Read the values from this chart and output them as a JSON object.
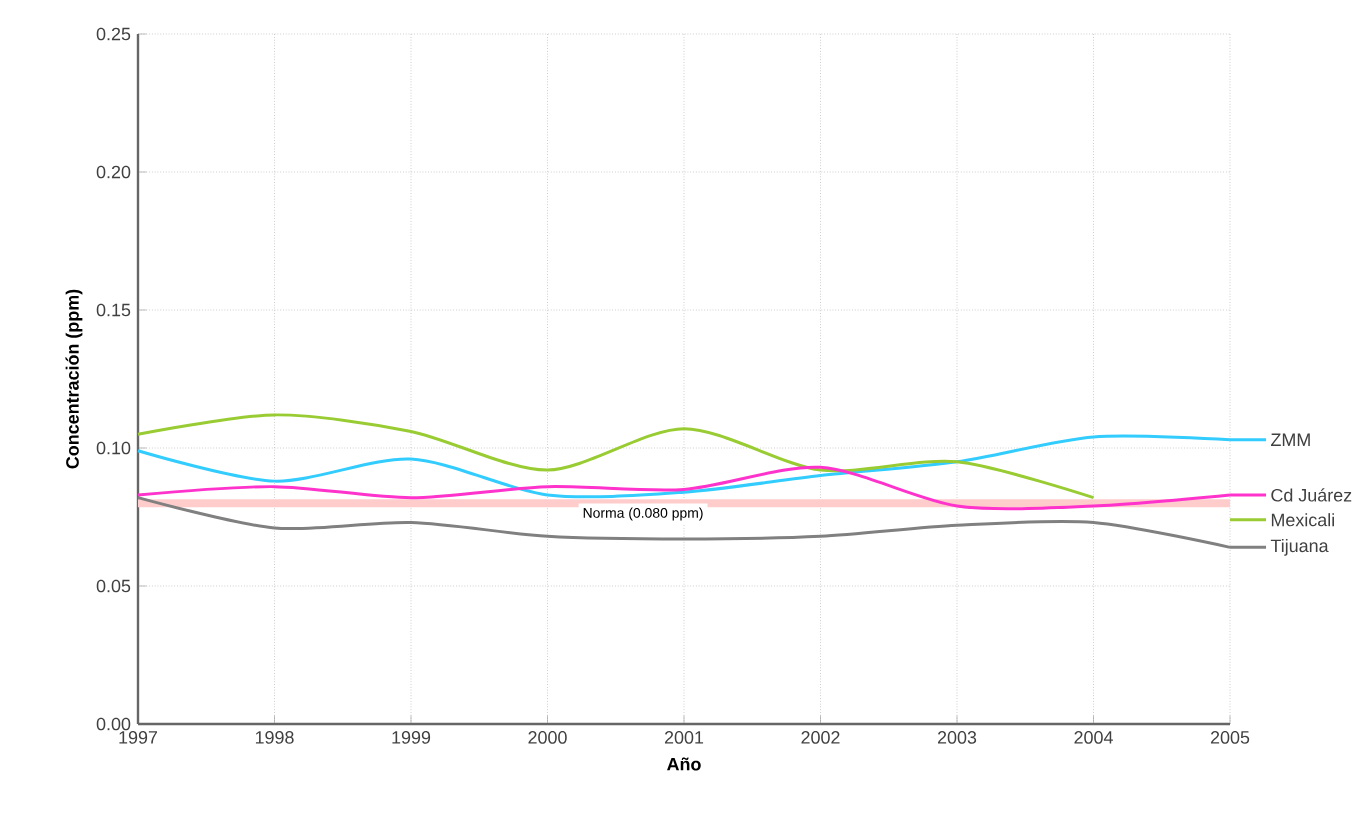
{
  "chart_data": {
    "type": "line",
    "xlabel": "Año",
    "ylabel": "Concentración (ppm)",
    "x": [
      1997,
      1998,
      1999,
      2000,
      2001,
      2002,
      2003,
      2004,
      2005
    ],
    "xlim": [
      1997,
      2005
    ],
    "xticks": [
      1997,
      1998,
      1999,
      2000,
      2001,
      2002,
      2003,
      2004,
      2005
    ],
    "ylim": [
      0,
      0.25
    ],
    "yticks": [
      {
        "value": 0,
        "label": "0.00"
      },
      {
        "value": 0.05,
        "label": "0.05"
      },
      {
        "value": 0.1,
        "label": "0.10"
      },
      {
        "value": 0.15,
        "label": "0.15"
      },
      {
        "value": 0.2,
        "label": "0.20"
      },
      {
        "value": 0.25,
        "label": "0.25"
      }
    ],
    "grid": true,
    "legend": "right",
    "marker": "none",
    "line_style": "solid",
    "series": [
      {
        "name": "ZMM",
        "color": "#33ccff",
        "values": [
          0.099,
          0.088,
          0.096,
          0.083,
          0.084,
          0.09,
          0.095,
          0.104,
          0.103
        ]
      },
      {
        "name": "Mexicali",
        "color": "#99cc33",
        "values": [
          0.105,
          0.112,
          0.106,
          0.092,
          0.107,
          0.092,
          0.095,
          0.082,
          null
        ]
      },
      {
        "name": "Cd Juárez",
        "color": "#ff33cc",
        "values": [
          0.083,
          0.086,
          0.082,
          0.086,
          0.085,
          0.093,
          0.079,
          0.079,
          0.083
        ]
      },
      {
        "name": "Tijuana",
        "color": "#808080",
        "values": [
          0.082,
          0.071,
          0.073,
          0.068,
          0.067,
          0.068,
          0.072,
          0.073,
          0.064
        ]
      }
    ],
    "ref_lines": [
      {
        "axis": "y",
        "value": 0.08,
        "label": "Norma (0.080 ppm)",
        "color": "#ffcccc"
      }
    ]
  }
}
